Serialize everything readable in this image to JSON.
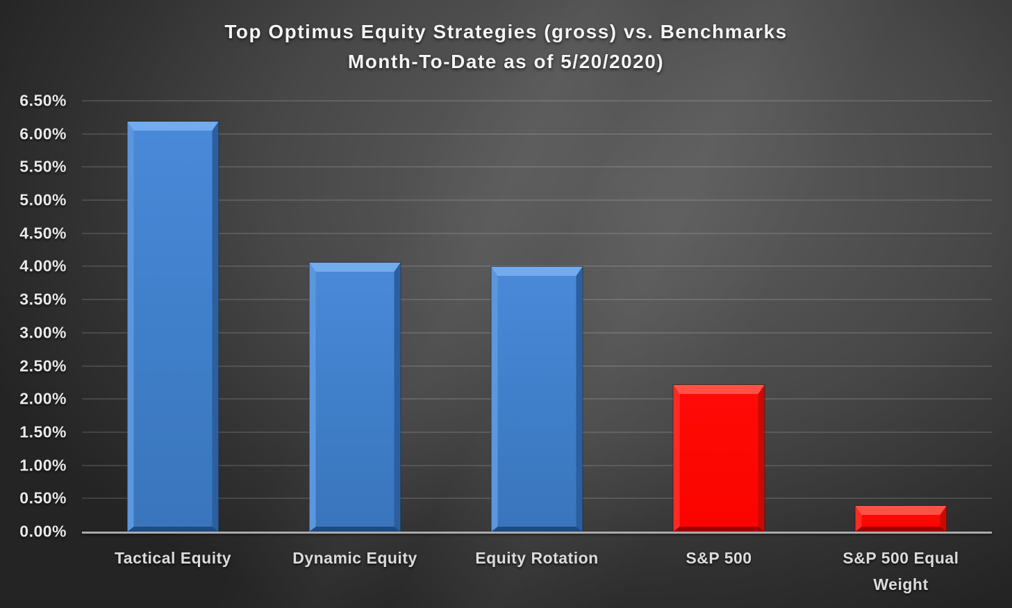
{
  "title": {
    "line1": "Top Optimus Equity Strategies (gross) vs. Benchmarks",
    "line2": "Month-To-Date as of 5/20/2020)"
  },
  "chart_data": {
    "type": "bar",
    "title": "Top Optimus Equity Strategies (gross) vs. Benchmarks Month-To-Date as of 5/20/2020)",
    "categories": [
      "Tactical Equity",
      "Dynamic Equity",
      "Equity Rotation",
      "S&P 500",
      "S&P 500 Equal Weight"
    ],
    "values": [
      6.19,
      4.06,
      3.99,
      2.21,
      0.39
    ],
    "unit": "%",
    "bar_series": [
      "strategy",
      "strategy",
      "strategy",
      "benchmark",
      "benchmark"
    ],
    "series_colors": {
      "strategy": "#4080cb",
      "benchmark": "#fb0400"
    },
    "xlabel": "",
    "ylabel": "",
    "ylim": [
      0,
      6.5
    ],
    "ytick_step": 0.5,
    "ytick_labels": [
      "0.00%",
      "0.50%",
      "1.00%",
      "1.50%",
      "2.00%",
      "2.50%",
      "3.00%",
      "3.50%",
      "4.00%",
      "4.50%",
      "5.00%",
      "5.50%",
      "6.00%",
      "6.50%"
    ],
    "grid": true,
    "legend": false,
    "background": "dark-gray-radial-gradient",
    "gridline_color": "#6b6b6b",
    "baseline_color": "#ababab",
    "text_color": "#e9e9e9"
  }
}
